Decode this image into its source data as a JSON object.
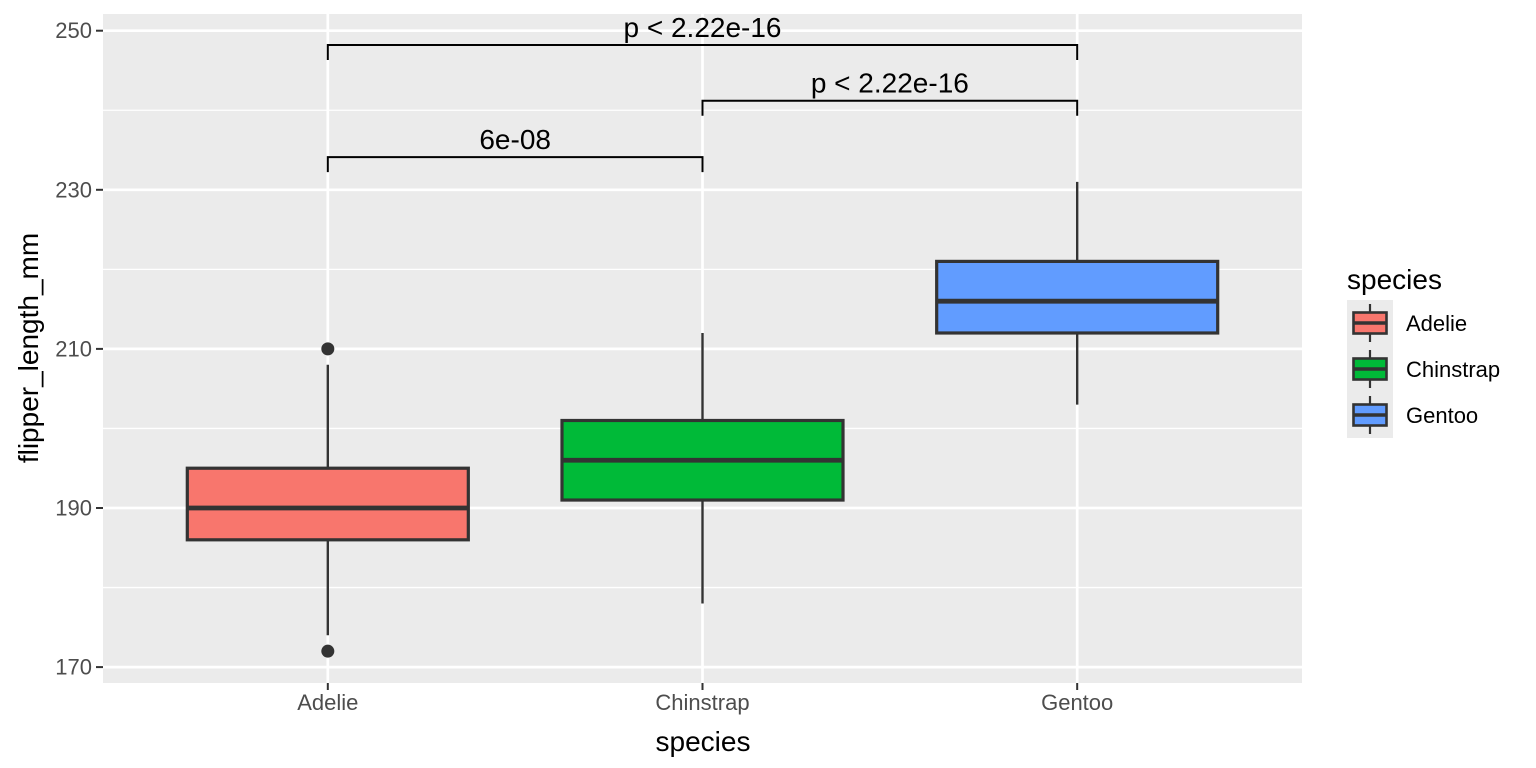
{
  "chart_data": {
    "type": "boxplot",
    "title": "",
    "xlabel": "species",
    "ylabel": "flipper_length_mm",
    "categories": [
      "Adelie",
      "Chinstrap",
      "Gentoo"
    ],
    "y_ticks": [
      170,
      190,
      210,
      230,
      250
    ],
    "y_minor_ticks": [
      180,
      200,
      220,
      240
    ],
    "ylim": [
      168.0,
      252.1
    ],
    "grid": true,
    "legend_position": "right",
    "series": [
      {
        "name": "Adelie",
        "fill": "#F8766D",
        "whisker_low": 174,
        "q1": 186,
        "median": 190,
        "q3": 195,
        "whisker_high": 208,
        "outliers": [
          172,
          210
        ]
      },
      {
        "name": "Chinstrap",
        "fill": "#00BA38",
        "whisker_low": 178,
        "q1": 191,
        "median": 196,
        "q3": 201,
        "whisker_high": 212,
        "outliers": []
      },
      {
        "name": "Gentoo",
        "fill": "#619CFF",
        "whisker_low": 203,
        "q1": 212,
        "median": 216,
        "q3": 221,
        "whisker_high": 231,
        "outliers": []
      }
    ],
    "comparisons": [
      {
        "label": "p < 2.22e-16",
        "group1": "Adelie",
        "group2": "Gentoo",
        "y_position": 248.2
      },
      {
        "label": "p < 2.22e-16",
        "group1": "Chinstrap",
        "group2": "Gentoo",
        "y_position": 241.2
      },
      {
        "label": "6e-08",
        "group1": "Adelie",
        "group2": "Chinstrap",
        "y_position": 234.1
      }
    ],
    "legend": {
      "title": "species",
      "entries": [
        "Adelie",
        "Chinstrap",
        "Gentoo"
      ]
    },
    "style": {
      "panel_bg": "#EBEBEB",
      "grid_color": "#FFFFFF",
      "box_stroke": "#333333",
      "bracket_color": "#000000",
      "axis_text_color": "#4D4D4D",
      "title_color": "#000000",
      "legend_key_bg": "#EBEBEB"
    }
  }
}
